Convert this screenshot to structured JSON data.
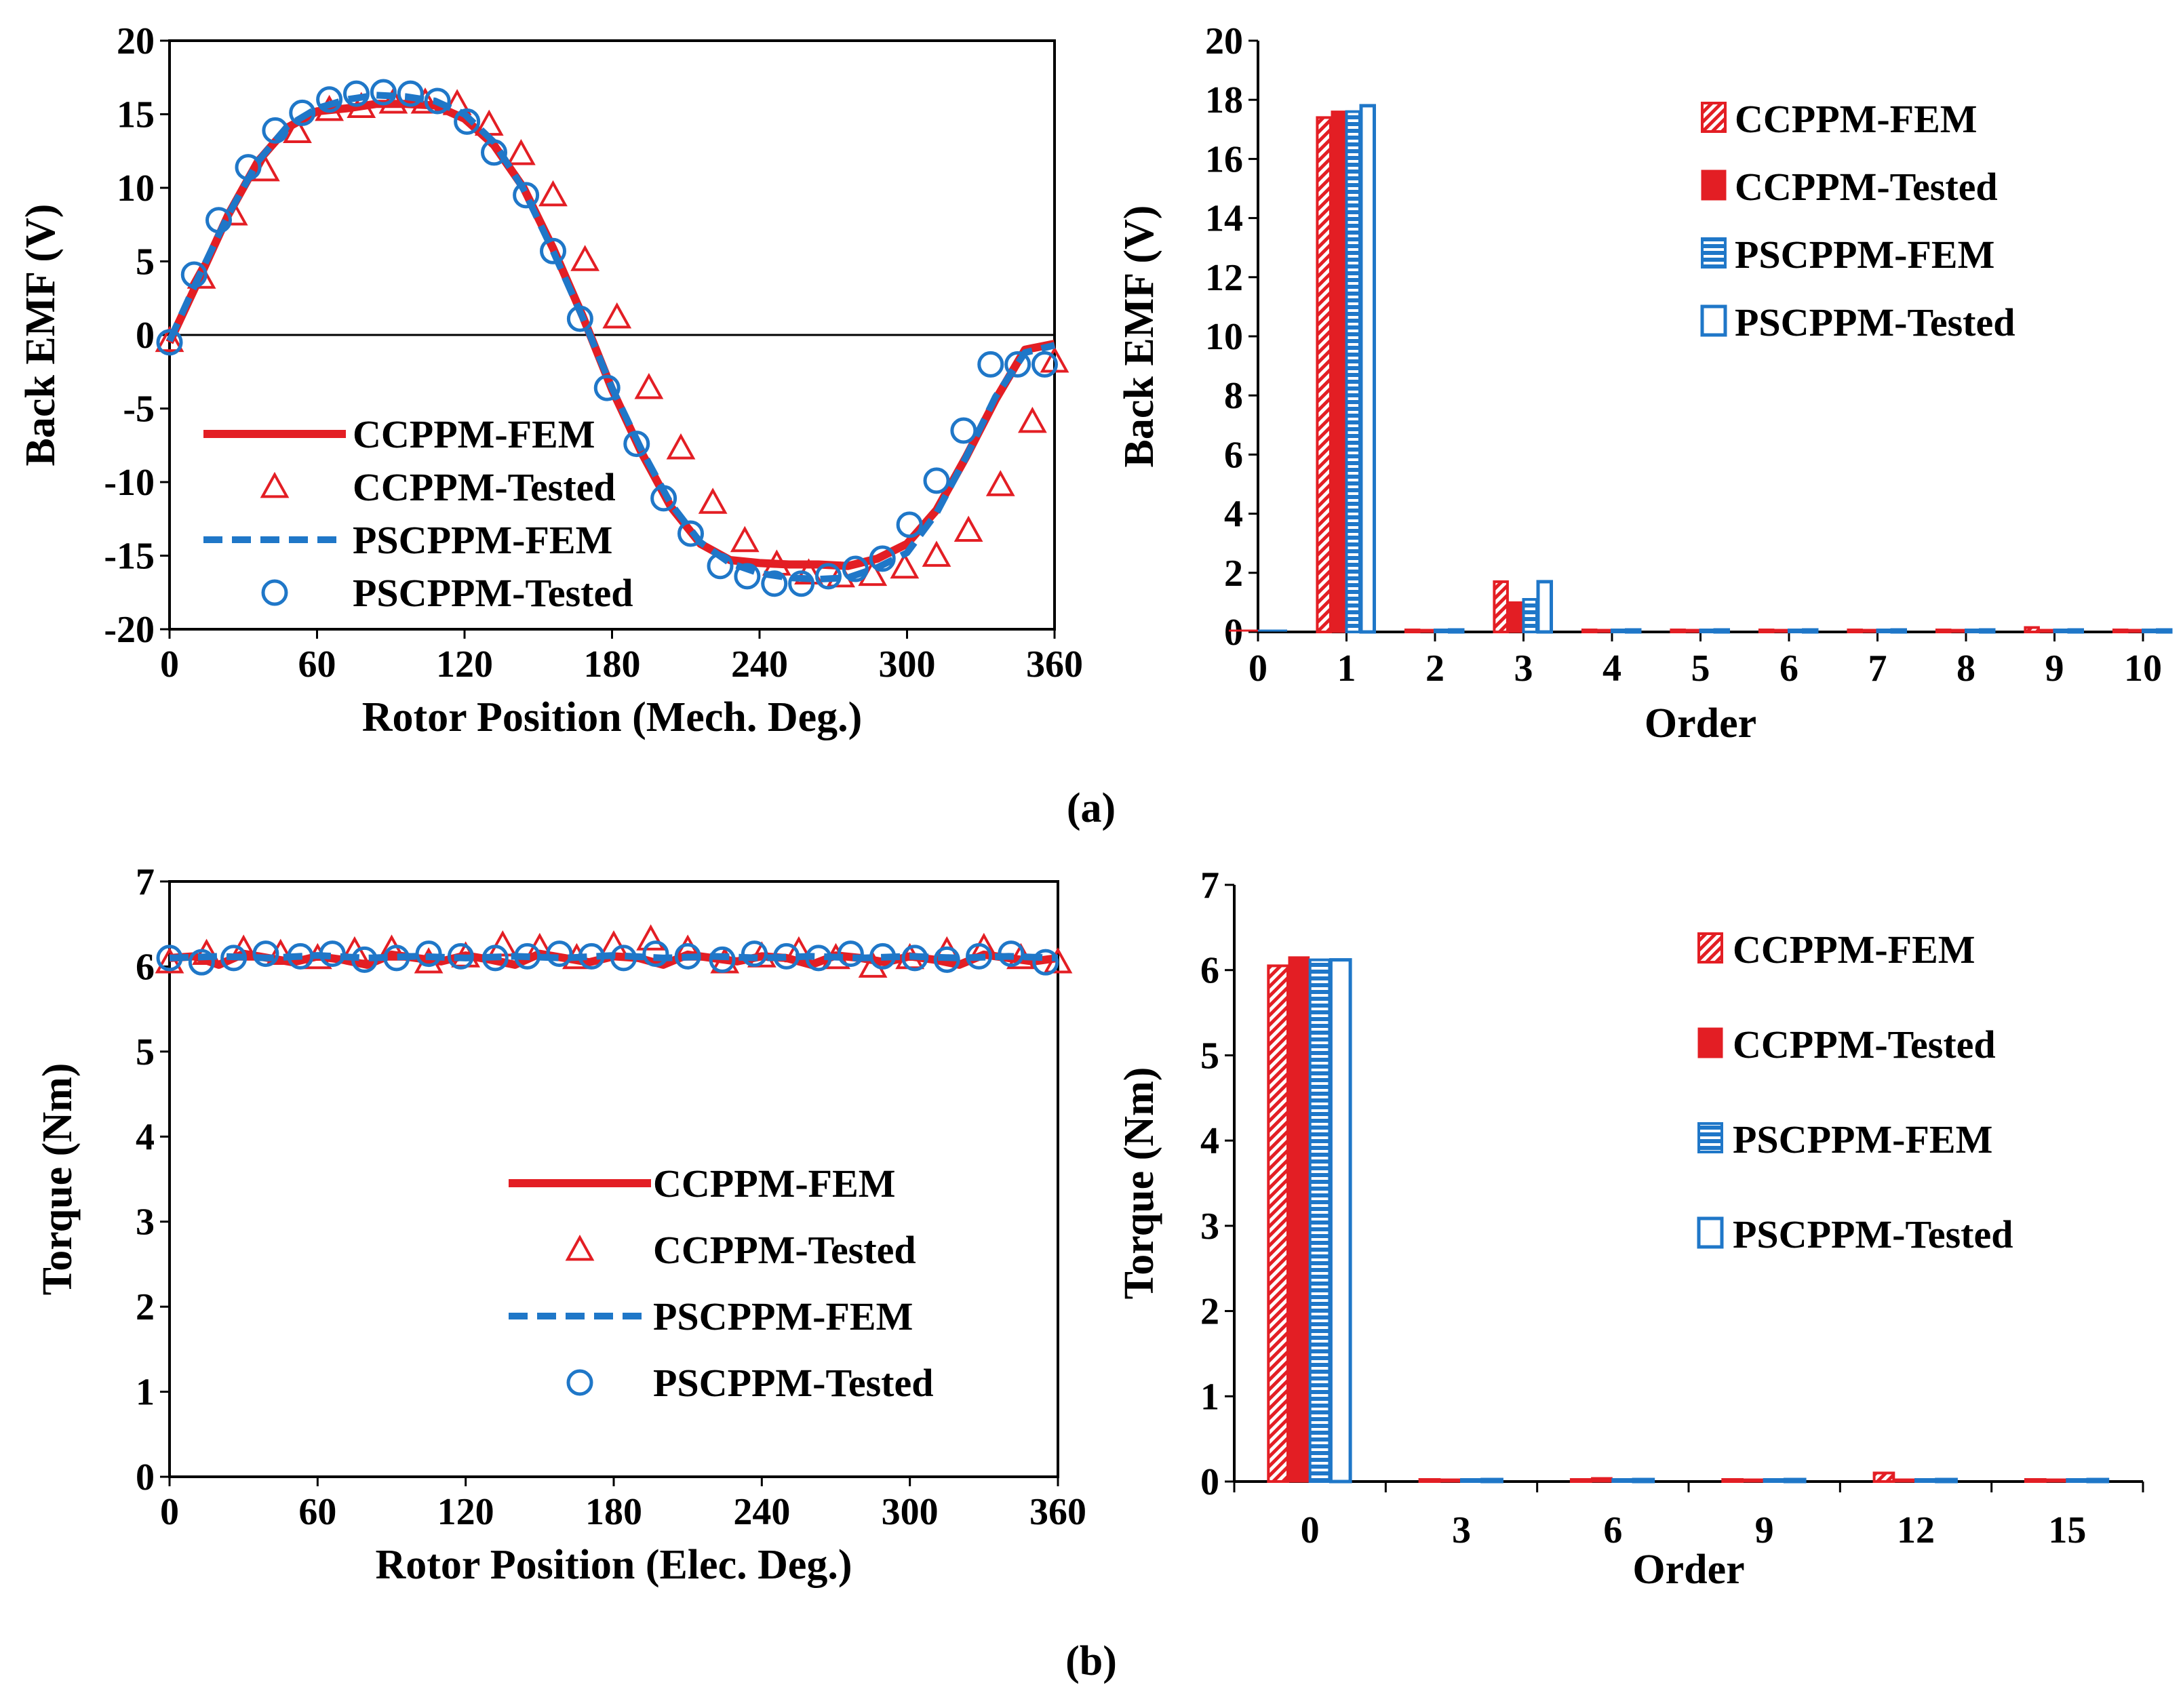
{
  "figure": {
    "caption_a": "(a)",
    "caption_b": "(b)"
  },
  "colors": {
    "ccppm": "#e31e24",
    "pscppm": "#1f77c8"
  },
  "chart_data": [
    {
      "id": "a-left",
      "type": "line",
      "xlabel": "Rotor Position (Mech. Deg.)",
      "ylabel": "Back EMF (V)",
      "xlim": [
        0,
        360
      ],
      "ylim": [
        -20,
        20
      ],
      "xticks": [
        0,
        60,
        120,
        180,
        240,
        300,
        360
      ],
      "yticks": [
        -20,
        -15,
        -10,
        -5,
        0,
        5,
        10,
        15,
        20
      ],
      "legend_position": "bottom-left",
      "series": [
        {
          "name": "CCPPM-FEM",
          "style": "solid-line",
          "x": [
            0,
            12,
            24,
            36,
            48,
            60,
            72,
            84,
            96,
            108,
            120,
            132,
            144,
            156,
            168,
            180,
            192,
            204,
            216,
            228,
            240,
            252,
            264,
            276,
            288,
            300,
            312,
            324,
            336,
            348,
            360
          ],
          "y": [
            -0.5,
            3.8,
            8.2,
            11.8,
            14.1,
            15.2,
            15.4,
            15.7,
            15.7,
            15.6,
            14.7,
            12.9,
            10.0,
            5.9,
            1.3,
            -3.7,
            -8.0,
            -11.7,
            -14.2,
            -15.3,
            -15.5,
            -15.6,
            -15.6,
            -15.7,
            -15.2,
            -14.2,
            -11.9,
            -8.3,
            -4.4,
            -1.0,
            -0.6
          ]
        },
        {
          "name": "CCPPM-Tested",
          "style": "triangle-marker",
          "x": [
            0,
            13,
            26,
            39,
            52,
            65,
            78,
            91,
            104,
            117,
            130,
            143,
            156,
            169,
            182,
            195,
            208,
            221,
            234,
            247,
            260,
            273,
            286,
            299,
            312,
            325,
            338,
            351,
            360
          ],
          "y": [
            -0.4,
            3.9,
            8.2,
            11.2,
            13.8,
            15.3,
            15.5,
            15.8,
            15.8,
            15.7,
            14.3,
            12.3,
            9.5,
            5.1,
            1.2,
            -3.6,
            -7.7,
            -11.4,
            -14.0,
            -15.6,
            -16.2,
            -16.4,
            -16.3,
            -15.8,
            -15.0,
            -13.3,
            -10.2,
            -5.9,
            -1.8
          ]
        },
        {
          "name": "PSCPPM-FEM",
          "style": "dashed-line",
          "x": [
            0,
            12,
            24,
            36,
            48,
            60,
            72,
            84,
            96,
            108,
            120,
            132,
            144,
            156,
            168,
            180,
            192,
            204,
            216,
            228,
            240,
            252,
            264,
            276,
            288,
            300,
            312,
            324,
            336,
            348,
            360
          ],
          "y": [
            -0.4,
            4.0,
            8.2,
            11.8,
            14.2,
            15.4,
            16.0,
            16.3,
            16.2,
            15.9,
            15.0,
            13.1,
            9.9,
            5.7,
            1.2,
            -3.6,
            -7.8,
            -11.5,
            -14.1,
            -15.5,
            -16.2,
            -16.5,
            -16.6,
            -16.5,
            -15.8,
            -14.8,
            -12.1,
            -8.3,
            -4.2,
            -1.2,
            -0.7
          ]
        },
        {
          "name": "PSCPPM-Tested",
          "style": "circle-marker",
          "x": [
            0,
            10,
            20,
            32,
            43,
            54,
            65,
            76,
            87,
            98,
            109,
            121,
            132,
            145,
            156,
            167,
            178,
            190,
            201,
            212,
            224,
            235,
            246,
            257,
            268,
            279,
            290,
            301,
            312,
            323,
            334,
            345,
            356
          ],
          "y": [
            -0.5,
            4.1,
            7.8,
            11.4,
            13.9,
            15.1,
            16.0,
            16.4,
            16.5,
            16.4,
            15.9,
            14.5,
            12.4,
            9.5,
            5.7,
            1.1,
            -3.6,
            -7.4,
            -11.1,
            -13.5,
            -15.7,
            -16.4,
            -16.9,
            -16.9,
            -16.4,
            -15.9,
            -15.2,
            -12.9,
            -9.9,
            -6.5,
            -2.0,
            -2.0,
            -2.0
          ]
        }
      ]
    },
    {
      "id": "a-right",
      "type": "bar",
      "xlabel": "Order",
      "ylabel": "Back EMF (V)",
      "xlim": [
        0,
        10
      ],
      "ylim": [
        0,
        20
      ],
      "xticks": [
        0,
        1,
        2,
        3,
        4,
        5,
        6,
        7,
        8,
        9,
        10
      ],
      "yticks": [
        0,
        2,
        4,
        6,
        8,
        10,
        12,
        14,
        16,
        18,
        20
      ],
      "legend_position": "top-right",
      "categories": [
        1,
        2,
        3,
        4,
        5,
        6,
        7,
        8,
        9,
        10
      ],
      "series": [
        {
          "name": "CCPPM-FEM",
          "style": "red-hatched",
          "values": [
            17.4,
            0.02,
            1.7,
            0.02,
            0.02,
            0.02,
            0.02,
            0.02,
            0.15,
            0.02
          ]
        },
        {
          "name": "CCPPM-Tested",
          "style": "red-solid",
          "values": [
            17.6,
            0.02,
            1.0,
            0.02,
            0.02,
            0.02,
            0.02,
            0.02,
            0.05,
            0.02
          ]
        },
        {
          "name": "PSCPPM-FEM",
          "style": "blue-striped",
          "values": [
            17.6,
            0.02,
            1.1,
            0.02,
            0.02,
            0.02,
            0.02,
            0.02,
            0.02,
            0.02
          ]
        },
        {
          "name": "PSCPPM-Tested",
          "style": "blue-open",
          "values": [
            17.8,
            0.02,
            1.7,
            0.02,
            0.02,
            0.02,
            0.02,
            0.02,
            0.02,
            0.02
          ]
        }
      ]
    },
    {
      "id": "b-left",
      "type": "line",
      "xlabel": "Rotor Position (Elec. Deg.)",
      "ylabel": "Torque (Nm)",
      "xlim": [
        0,
        360
      ],
      "ylim": [
        0,
        7
      ],
      "xticks": [
        0,
        60,
        120,
        180,
        240,
        300,
        360
      ],
      "yticks": [
        0,
        1,
        2,
        3,
        4,
        5,
        6,
        7
      ],
      "legend_position": "center",
      "series": [
        {
          "name": "CCPPM-FEM",
          "style": "solid-line",
          "x": [
            0,
            10,
            20,
            30,
            40,
            50,
            60,
            70,
            80,
            90,
            100,
            110,
            120,
            130,
            140,
            150,
            160,
            170,
            180,
            190,
            200,
            210,
            220,
            230,
            240,
            250,
            260,
            270,
            280,
            290,
            300,
            310,
            320,
            330,
            340,
            350,
            360
          ],
          "y": [
            6.1,
            6.12,
            6.02,
            6.15,
            6.1,
            6.05,
            6.12,
            6.08,
            6.02,
            6.14,
            6.1,
            6.06,
            6.13,
            6.08,
            6.02,
            6.15,
            6.1,
            6.05,
            6.12,
            6.1,
            6.02,
            6.14,
            6.1,
            6.06,
            6.12,
            6.1,
            6.02,
            6.13,
            6.1,
            6.05,
            6.12,
            6.08,
            6.02,
            6.14,
            6.1,
            6.06,
            6.1
          ]
        },
        {
          "name": "CCPPM-Tested",
          "style": "triangle-marker",
          "x": [
            0,
            15,
            30,
            45,
            60,
            75,
            90,
            105,
            120,
            135,
            150,
            165,
            180,
            195,
            210,
            225,
            240,
            255,
            270,
            285,
            300,
            315,
            330,
            345,
            360
          ],
          "y": [
            6.05,
            6.15,
            6.2,
            6.15,
            6.1,
            6.18,
            6.2,
            6.05,
            6.12,
            6.25,
            6.22,
            6.1,
            6.25,
            6.32,
            6.2,
            6.05,
            6.12,
            6.18,
            6.1,
            6.0,
            6.1,
            6.18,
            6.22,
            6.1,
            6.05
          ]
        },
        {
          "name": "PSCPPM-FEM",
          "style": "dashed-line",
          "x": [
            0,
            20,
            40,
            60,
            80,
            100,
            120,
            140,
            160,
            180,
            200,
            220,
            240,
            260,
            280,
            300,
            320,
            340,
            360
          ],
          "y": [
            6.1,
            6.12,
            6.1,
            6.13,
            6.1,
            6.12,
            6.1,
            6.12,
            6.1,
            6.13,
            6.1,
            6.12,
            6.1,
            6.12,
            6.1,
            6.12,
            6.1,
            6.12,
            6.1
          ]
        },
        {
          "name": "PSCPPM-Tested",
          "style": "circle-marker",
          "x": [
            0,
            13,
            26,
            39,
            53,
            66,
            79,
            92,
            105,
            118,
            132,
            145,
            158,
            171,
            184,
            197,
            210,
            224,
            237,
            250,
            263,
            276,
            289,
            302,
            315,
            328,
            341,
            355
          ],
          "y": [
            6.1,
            6.05,
            6.1,
            6.15,
            6.12,
            6.15,
            6.08,
            6.1,
            6.15,
            6.12,
            6.1,
            6.12,
            6.15,
            6.12,
            6.1,
            6.15,
            6.12,
            6.08,
            6.15,
            6.12,
            6.1,
            6.15,
            6.12,
            6.1,
            6.08,
            6.12,
            6.15,
            6.05
          ]
        }
      ]
    },
    {
      "id": "b-right",
      "type": "bar",
      "xlabel": "Order",
      "ylabel": "Torque (Nm)",
      "xlim": [
        -1.5,
        16.5
      ],
      "ylim": [
        0,
        7
      ],
      "xticks": [
        0,
        3,
        6,
        9,
        12,
        15
      ],
      "yticks": [
        0,
        1,
        2,
        3,
        4,
        5,
        6,
        7
      ],
      "legend_position": "top-right",
      "categories": [
        0,
        3,
        6,
        9,
        12,
        15
      ],
      "series": [
        {
          "name": "CCPPM-FEM",
          "style": "red-hatched",
          "values": [
            6.05,
            0.01,
            0.01,
            0.01,
            0.1,
            0.01
          ]
        },
        {
          "name": "CCPPM-Tested",
          "style": "red-solid",
          "values": [
            6.15,
            0.01,
            0.04,
            0.01,
            0.01,
            0.01
          ]
        },
        {
          "name": "PSCPPM-FEM",
          "style": "blue-striped",
          "values": [
            6.12,
            0.01,
            0.01,
            0.01,
            0.01,
            0.01
          ]
        },
        {
          "name": "PSCPPM-Tested",
          "style": "blue-open",
          "values": [
            6.12,
            0.01,
            0.01,
            0.01,
            0.01,
            0.01
          ]
        }
      ]
    }
  ]
}
